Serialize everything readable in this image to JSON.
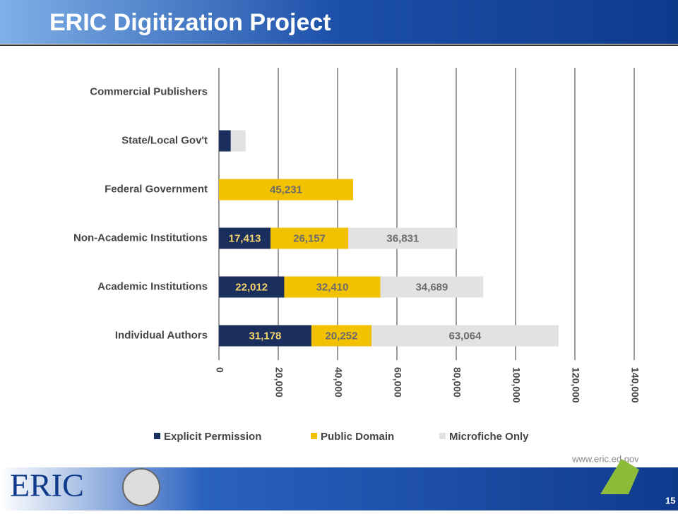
{
  "slide": {
    "title": "ERIC Digitization Project",
    "logo": "ERIC",
    "url": "www.eric.ed.gov",
    "page_number": "15"
  },
  "chart_data": {
    "type": "stacked-bar-horizontal",
    "categories": [
      "Commercial Publishers",
      "State/Local Gov't",
      "Federal Government",
      "Non-Academic Institutions",
      "Academic Institutions",
      "Individual Authors"
    ],
    "series": [
      {
        "name": "Explicit Permission",
        "color": "#1b2f5e",
        "label_color": "#f2d36b",
        "values": [
          0,
          4000,
          0,
          17413,
          22012,
          31178
        ],
        "value_labels": [
          null,
          null,
          null,
          "17,413",
          "22,012",
          "31,178"
        ]
      },
      {
        "name": "Public Domain",
        "color": "#f2c200",
        "label_color": "#6b6b6b",
        "values": [
          0,
          0,
          45231,
          26157,
          32410,
          20252
        ],
        "value_labels": [
          null,
          null,
          "45,231",
          "26,157",
          "32,410",
          "20,252"
        ]
      },
      {
        "name": "Microfiche Only",
        "color": "#e2e2e2",
        "label_color": "#6b6b6b",
        "values": [
          0,
          5000,
          0,
          36831,
          34689,
          63064
        ],
        "value_labels": [
          null,
          null,
          null,
          "36,831",
          "34,689",
          "63,064"
        ]
      }
    ],
    "xlim": [
      0,
      140000
    ],
    "xticks": [
      0,
      {
        "value": 20000,
        "label": "20,000"
      },
      {
        "value": 40000,
        "label": "40,000"
      },
      {
        "value": 60000,
        "label": "60,000"
      },
      {
        "value": 80000,
        "label": "80,000"
      },
      {
        "value": 100000,
        "label": "100,000"
      },
      {
        "value": 120000,
        "label": "120,000"
      },
      {
        "value": 140000,
        "label": "140,000"
      }
    ],
    "grid": true,
    "legend": "bottom"
  }
}
